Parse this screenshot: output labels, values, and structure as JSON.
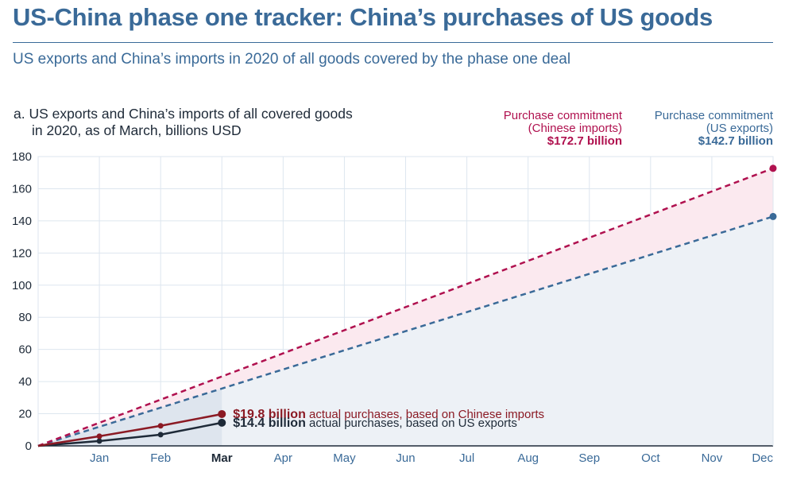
{
  "header": {
    "title": "US-China phase one tracker: China’s purchases of US goods",
    "subtitle": "US exports and China’s imports in 2020 of all goods covered by the phase one deal"
  },
  "panel": {
    "title_line1": "a. US exports and China’s imports of all covered goods",
    "title_line2": "in 2020, as of March, billions USD"
  },
  "legend": {
    "chinese_label_line1": "Purchase commitment",
    "chinese_label_line2": "(Chinese imports)",
    "chinese_value": "$172.7 billion",
    "us_label_line1": "Purchase commitment",
    "us_label_line2": "(US exports)",
    "us_value": "$142.7 billion"
  },
  "chart_data": {
    "type": "line",
    "title": "US exports and China’s imports of all covered goods in 2020, as of March, billions USD",
    "ylim": [
      0,
      180
    ],
    "yticks": [
      0,
      20,
      40,
      60,
      80,
      100,
      120,
      140,
      160,
      180
    ],
    "months": [
      "Jan",
      "Feb",
      "Mar",
      "Apr",
      "May",
      "Jun",
      "Jul",
      "Aug",
      "Sep",
      "Oct",
      "Nov",
      "Dec"
    ],
    "current_month": "Mar",
    "colors": {
      "chinese": "#b0114f",
      "us": "#3a6a98",
      "actual_chinese": "#8b1a24",
      "actual_us": "#1e2a38",
      "grid": "#dde6ef",
      "fill_chinese": "#fbe9ef",
      "fill_us": "#edf1f6"
    },
    "series": [
      {
        "name": "Purchase commitment (Chinese imports)",
        "style": "dashed",
        "x": [
          0,
          12
        ],
        "values": [
          0,
          172.7
        ]
      },
      {
        "name": "Purchase commitment (US exports)",
        "style": "dashed",
        "x": [
          0,
          12
        ],
        "values": [
          0,
          142.7
        ]
      },
      {
        "name": "Actual purchases, based on Chinese imports",
        "style": "solid",
        "x": [
          0,
          1,
          2,
          3
        ],
        "values": [
          0,
          6,
          12.5,
          19.8
        ]
      },
      {
        "name": "Actual purchases, based on US exports",
        "style": "solid",
        "x": [
          0,
          1,
          2,
          3
        ],
        "values": [
          0,
          3,
          7,
          14.4
        ]
      }
    ],
    "annotations": [
      {
        "bold": "$19.8 billion",
        "text": " actual purchases, based on Chinese imports"
      },
      {
        "bold": "$14.4 billion",
        "text": " actual purchases, based on US exports"
      }
    ]
  }
}
